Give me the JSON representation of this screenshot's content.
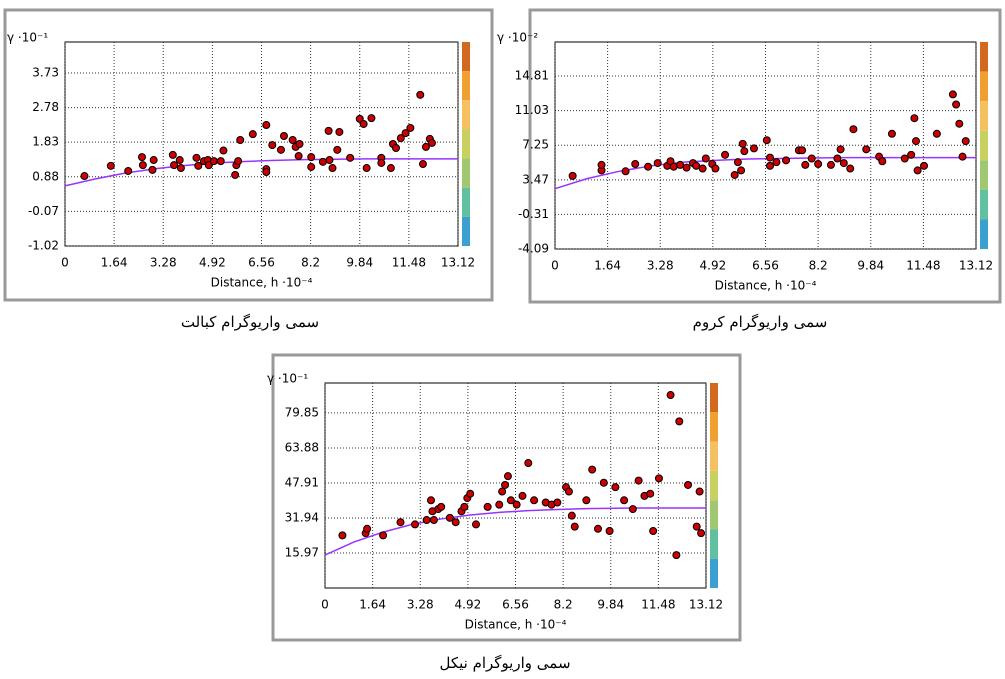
{
  "chart_data": [
    {
      "type": "scatter",
      "y_label": "γ ·10⁻¹",
      "x_label": "Distance, h ·10⁻⁴",
      "caption": "سمی واریوگرام کبالت",
      "xlim": [
        0,
        13.12
      ],
      "ylim": [
        -1.02,
        4.58
      ],
      "xticks": [
        0,
        1.64,
        3.28,
        4.92,
        6.56,
        8.2,
        9.84,
        11.48,
        13.12
      ],
      "yticks": [
        -1.02,
        -0.07,
        0.88,
        1.83,
        2.78,
        3.73
      ],
      "grid": true,
      "series": [
        {
          "color": "#cc0000",
          "x": [
            0.65,
            1.53,
            2.11,
            2.57,
            2.6,
            2.92,
            2.96,
            3.6,
            3.64,
            3.83,
            3.87,
            4.39,
            4.45,
            4.64,
            4.77,
            4.8,
            4.97,
            5.2,
            5.29,
            5.68,
            5.72,
            5.78,
            5.85,
            6.27,
            6.72,
            6.72,
            6.72,
            6.92,
            7.21,
            7.31,
            7.6,
            7.7,
            7.8,
            7.83,
            8.22,
            8.22,
            8.61,
            8.83,
            8.8,
            8.93,
            9.16,
            9.09,
            9.52,
            9.84,
            9.97,
            10.07,
            10.23,
            10.56,
            10.56,
            10.88,
            10.95,
            11.05,
            11.21,
            11.37,
            11.53,
            11.86,
            11.95,
            12.05,
            12.18,
            12.25
          ],
          "values": [
            0.9,
            1.18,
            1.04,
            1.42,
            1.2,
            1.07,
            1.34,
            1.48,
            1.2,
            1.34,
            1.12,
            1.4,
            1.18,
            1.31,
            1.34,
            1.2,
            1.31,
            1.31,
            1.6,
            0.93,
            1.2,
            1.31,
            1.89,
            2.05,
            2.3,
            1.09,
            1.01,
            1.75,
            1.62,
            2.0,
            1.89,
            1.7,
            1.45,
            1.78,
            1.42,
            1.15,
            1.29,
            1.34,
            2.14,
            1.12,
            2.11,
            1.62,
            1.4,
            2.47,
            2.33,
            1.12,
            2.49,
            1.4,
            1.26,
            1.12,
            1.78,
            1.67,
            1.94,
            2.08,
            2.22,
            3.13,
            1.23,
            1.7,
            1.92,
            1.81
          ]
        }
      ],
      "curve": {
        "color": "#9933ff",
        "x": [
          0,
          1,
          2,
          3,
          4,
          5,
          6,
          7,
          8,
          9,
          10,
          11,
          12,
          13.12
        ],
        "values": [
          0.63,
          0.82,
          0.98,
          1.1,
          1.19,
          1.26,
          1.3,
          1.33,
          1.35,
          1.36,
          1.37,
          1.37,
          1.37,
          1.37
        ]
      }
    },
    {
      "type": "scatter",
      "y_label": "γ ·10⁻²",
      "x_label": "Distance, h ·10⁻⁴",
      "caption": "سمی واریوگرام کروم",
      "xlim": [
        0,
        13.12
      ],
      "ylim": [
        -4.09,
        18.53
      ],
      "xticks": [
        0,
        1.64,
        3.28,
        4.92,
        6.56,
        8.2,
        9.84,
        11.48,
        13.12
      ],
      "yticks": [
        -4.09,
        -0.31,
        3.47,
        7.25,
        11.03,
        14.81
      ],
      "grid": true,
      "series": [
        {
          "color": "#cc0000",
          "x": [
            0.55,
            1.45,
            1.45,
            2.2,
            2.5,
            2.9,
            3.2,
            3.5,
            3.6,
            3.7,
            3.9,
            4.1,
            4.3,
            4.4,
            4.6,
            4.7,
            4.9,
            5.0,
            5.3,
            5.6,
            5.7,
            5.8,
            5.85,
            5.9,
            6.2,
            6.6,
            6.7,
            6.7,
            6.9,
            7.2,
            7.6,
            7.7,
            7.8,
            8.0,
            8.2,
            8.6,
            8.8,
            8.9,
            9.0,
            9.2,
            9.3,
            9.7,
            10.1,
            10.2,
            10.5,
            10.9,
            11.1,
            11.2,
            11.25,
            11.3,
            11.5,
            11.9,
            12.4,
            12.5,
            12.6,
            12.7,
            12.8
          ],
          "values": [
            3.9,
            4.5,
            5.1,
            4.4,
            5.2,
            4.9,
            5.3,
            5.0,
            5.5,
            4.9,
            5.1,
            4.8,
            5.3,
            5.0,
            4.7,
            5.8,
            5.2,
            4.7,
            6.2,
            4.0,
            5.4,
            4.5,
            7.4,
            6.6,
            6.9,
            7.8,
            5.0,
            5.9,
            5.4,
            5.6,
            6.7,
            6.7,
            5.1,
            5.8,
            5.2,
            5.1,
            5.8,
            6.8,
            5.3,
            4.7,
            9.0,
            6.8,
            6.0,
            5.5,
            8.5,
            5.8,
            6.2,
            10.2,
            7.7,
            4.5,
            5.0,
            8.5,
            12.8,
            11.7,
            9.6,
            6.0,
            7.7
          ]
        }
      ],
      "curve": {
        "color": "#9933ff",
        "x": [
          0,
          1,
          2,
          3,
          4,
          5,
          6,
          7,
          8,
          9,
          10,
          11,
          12,
          13.12
        ],
        "values": [
          2.5,
          3.6,
          4.4,
          5.0,
          5.4,
          5.6,
          5.75,
          5.8,
          5.85,
          5.9,
          5.9,
          5.9,
          5.9,
          5.9
        ]
      }
    },
    {
      "type": "scatter",
      "y_label": "γ ·10⁻¹",
      "x_label": "Distance, h ·10⁻⁴",
      "caption": "سمی واریوگرام نیکل",
      "xlim": [
        0,
        13.12
      ],
      "ylim": [
        0,
        93.5
      ],
      "xticks": [
        0,
        1.64,
        3.28,
        4.92,
        6.56,
        8.2,
        9.84,
        11.48,
        13.12
      ],
      "yticks": [
        15.97,
        31.94,
        47.91,
        63.88,
        79.85
      ],
      "grid": true,
      "series": [
        {
          "color": "#cc0000",
          "x": [
            0.6,
            1.4,
            1.45,
            2.0,
            2.6,
            3.1,
            3.5,
            3.65,
            3.7,
            3.75,
            3.9,
            4.0,
            4.3,
            4.5,
            4.7,
            4.8,
            4.9,
            5.0,
            5.2,
            5.6,
            6.0,
            6.1,
            6.2,
            6.3,
            6.4,
            6.6,
            6.8,
            7.0,
            7.2,
            7.6,
            7.8,
            8.0,
            8.3,
            8.4,
            8.5,
            8.6,
            9.0,
            9.2,
            9.4,
            9.6,
            9.8,
            10.0,
            10.3,
            10.6,
            10.8,
            11.0,
            11.2,
            11.3,
            11.5,
            11.9,
            12.1,
            12.2,
            12.5,
            12.8,
            12.9,
            12.95
          ],
          "values": [
            24,
            25,
            27,
            24,
            30,
            29,
            31,
            40,
            35,
            31,
            36,
            37,
            32,
            30,
            35,
            37,
            41,
            43,
            29,
            37,
            38,
            44,
            47,
            51,
            40,
            38,
            42,
            57,
            40,
            39,
            38,
            39,
            46,
            44,
            33,
            28,
            40,
            54,
            27,
            48,
            26,
            46,
            40,
            36,
            49,
            42,
            43,
            26,
            50,
            88,
            15,
            76,
            47,
            28,
            44,
            25
          ]
        }
      ],
      "curve": {
        "color": "#9933ff",
        "x": [
          0,
          1,
          2,
          3,
          4,
          5,
          6,
          7,
          8,
          9,
          10,
          11,
          12,
          13.12
        ],
        "values": [
          15,
          21,
          25.5,
          29,
          31.5,
          33.3,
          34.5,
          35.3,
          35.8,
          36.2,
          36.4,
          36.5,
          36.5,
          36.5
        ]
      }
    }
  ]
}
